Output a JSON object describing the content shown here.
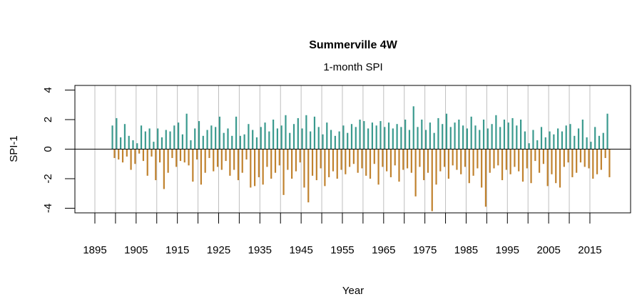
{
  "chart_data": {
    "type": "bar",
    "title": "Summerville 4W",
    "subtitle": "1-month SPI",
    "xlabel": "Year",
    "ylabel": "SPI-1",
    "xlim": [
      1890,
      2024
    ],
    "ylim": [
      -4.2,
      4.2
    ],
    "x_ticks": [
      1895,
      1900,
      1905,
      1910,
      1915,
      1920,
      1925,
      1930,
      1935,
      1940,
      1945,
      1950,
      1955,
      1960,
      1965,
      1970,
      1975,
      1980,
      1985,
      1990,
      1995,
      2000,
      2005,
      2010,
      2015
    ],
    "x_tick_labels": [
      "1895",
      "1905",
      "1915",
      "1925",
      "1935",
      "1945",
      "1955",
      "1965",
      "1975",
      "1985",
      "1995",
      "2005",
      "2015"
    ],
    "y_tick_labels": [
      "4",
      "2",
      "0",
      "-2",
      "-4"
    ],
    "grid": "vertical lines every 5 years",
    "colors": {
      "positive": "#3a9a8e",
      "negative": "#c0822e",
      "grid": "#bebebe"
    },
    "data_format": "[year, first-half value, second-half value] (approximate readings of the monthly bars)",
    "data": [
      [
        1899,
        1.6,
        -0.6
      ],
      [
        1900,
        2.1,
        -0.7
      ],
      [
        1901,
        0.8,
        -0.9
      ],
      [
        1902,
        1.7,
        -0.5
      ],
      [
        1903,
        0.9,
        -1.4
      ],
      [
        1904,
        0.6,
        -1.0
      ],
      [
        1905,
        0.4,
        -0.3
      ],
      [
        1906,
        1.6,
        -0.8
      ],
      [
        1907,
        1.2,
        -1.8
      ],
      [
        1908,
        1.4,
        -0.5
      ],
      [
        1909,
        0.5,
        -2.1
      ],
      [
        1910,
        1.4,
        -0.9
      ],
      [
        1911,
        0.8,
        -2.7
      ],
      [
        1912,
        1.3,
        -1.6
      ],
      [
        1913,
        1.2,
        -0.6
      ],
      [
        1914,
        1.6,
        -1.2
      ],
      [
        1915,
        1.8,
        -0.8
      ],
      [
        1916,
        1.0,
        -0.9
      ],
      [
        1917,
        2.4,
        -1.1
      ],
      [
        1918,
        0.6,
        -2.2
      ],
      [
        1919,
        1.4,
        -0.7
      ],
      [
        1920,
        1.9,
        -2.4
      ],
      [
        1921,
        0.9,
        -1.6
      ],
      [
        1922,
        1.3,
        -0.6
      ],
      [
        1923,
        1.6,
        -1.5
      ],
      [
        1924,
        1.5,
        -1.2
      ],
      [
        1925,
        2.2,
        -1.4
      ],
      [
        1926,
        1.1,
        -0.8
      ],
      [
        1927,
        1.4,
        -1.8
      ],
      [
        1928,
        0.9,
        -1.4
      ],
      [
        1929,
        2.2,
        -2.1
      ],
      [
        1930,
        0.9,
        -1.6
      ],
      [
        1931,
        1.0,
        -0.7
      ],
      [
        1932,
        1.7,
        -2.6
      ],
      [
        1933,
        1.3,
        -2.5
      ],
      [
        1934,
        0.8,
        -1.9
      ],
      [
        1935,
        1.5,
        -2.4
      ],
      [
        1936,
        1.8,
        -1.2
      ],
      [
        1937,
        1.2,
        -2.0
      ],
      [
        1938,
        2.0,
        -1.6
      ],
      [
        1939,
        1.4,
        -1.1
      ],
      [
        1940,
        1.6,
        -3.1
      ],
      [
        1941,
        2.3,
        -1.4
      ],
      [
        1942,
        1.1,
        -2.0
      ],
      [
        1943,
        1.7,
        -1.5
      ],
      [
        1944,
        2.1,
        -0.9
      ],
      [
        1945,
        1.4,
        -2.6
      ],
      [
        1946,
        2.3,
        -3.6
      ],
      [
        1947,
        1.2,
        -1.8
      ],
      [
        1948,
        2.2,
        -2.1
      ],
      [
        1949,
        1.5,
        -1.3
      ],
      [
        1950,
        1.0,
        -2.5
      ],
      [
        1951,
        1.8,
        -1.9
      ],
      [
        1952,
        1.3,
        -1.5
      ],
      [
        1953,
        0.9,
        -2.0
      ],
      [
        1954,
        1.2,
        -1.4
      ],
      [
        1955,
        1.6,
        -1.7
      ],
      [
        1956,
        1.1,
        -1.2
      ],
      [
        1957,
        1.7,
        -1.0
      ],
      [
        1958,
        1.5,
        -1.6
      ],
      [
        1959,
        2.0,
        -1.3
      ],
      [
        1960,
        1.9,
        -1.8
      ],
      [
        1961,
        1.4,
        -2.0
      ],
      [
        1962,
        1.8,
        -1.0
      ],
      [
        1963,
        1.6,
        -2.4
      ],
      [
        1964,
        1.9,
        -1.2
      ],
      [
        1965,
        1.5,
        -1.5
      ],
      [
        1966,
        1.8,
        -1.9
      ],
      [
        1967,
        1.4,
        -1.1
      ],
      [
        1968,
        1.7,
        -2.2
      ],
      [
        1969,
        1.5,
        -1.4
      ],
      [
        1970,
        2.0,
        -1.3
      ],
      [
        1971,
        1.3,
        -1.6
      ],
      [
        1972,
        2.9,
        -3.2
      ],
      [
        1973,
        1.5,
        -1.2
      ],
      [
        1974,
        2.0,
        -2.1
      ],
      [
        1975,
        1.3,
        -1.6
      ],
      [
        1976,
        1.8,
        -4.2
      ],
      [
        1977,
        1.1,
        -2.4
      ],
      [
        1978,
        2.1,
        -1.5
      ],
      [
        1979,
        1.7,
        -1.2
      ],
      [
        1980,
        2.4,
        -2.0
      ],
      [
        1981,
        1.5,
        -1.1
      ],
      [
        1982,
        1.8,
        -1.4
      ],
      [
        1983,
        2.0,
        -1.7
      ],
      [
        1984,
        1.6,
        -1.2
      ],
      [
        1985,
        1.4,
        -2.3
      ],
      [
        1986,
        2.2,
        -1.8
      ],
      [
        1987,
        1.6,
        -1.3
      ],
      [
        1988,
        1.3,
        -2.6
      ],
      [
        1989,
        2.0,
        -3.9
      ],
      [
        1990,
        1.4,
        -1.6
      ],
      [
        1991,
        1.7,
        -1.3
      ],
      [
        1992,
        2.3,
        -1.1
      ],
      [
        1993,
        1.5,
        -2.1
      ],
      [
        1994,
        2.0,
        -1.4
      ],
      [
        1995,
        1.8,
        -1.7
      ],
      [
        1996,
        2.1,
        -1.2
      ],
      [
        1997,
        1.6,
        -1.5
      ],
      [
        1998,
        2.0,
        -2.2
      ],
      [
        1999,
        1.2,
        -1.3
      ],
      [
        2000,
        0.4,
        -2.3
      ],
      [
        2001,
        1.3,
        -0.8
      ],
      [
        2002,
        0.6,
        -1.6
      ],
      [
        2003,
        1.5,
        -1.0
      ],
      [
        2004,
        0.8,
        -2.5
      ],
      [
        2005,
        1.2,
        -1.7
      ],
      [
        2006,
        1.0,
        -2.3
      ],
      [
        2007,
        1.4,
        -2.6
      ],
      [
        2008,
        1.2,
        -1.2
      ],
      [
        2009,
        1.6,
        -0.9
      ],
      [
        2010,
        1.7,
        -1.9
      ],
      [
        2011,
        0.9,
        -1.6
      ],
      [
        2012,
        1.4,
        -0.9
      ],
      [
        2013,
        2.0,
        -1.2
      ],
      [
        2014,
        0.8,
        -1.3
      ],
      [
        2015,
        0.5,
        -2.0
      ],
      [
        2016,
        1.5,
        -1.7
      ],
      [
        2017,
        0.9,
        -1.4
      ],
      [
        2018,
        1.1,
        -0.6
      ],
      [
        2019,
        2.4,
        -1.9
      ]
    ]
  }
}
